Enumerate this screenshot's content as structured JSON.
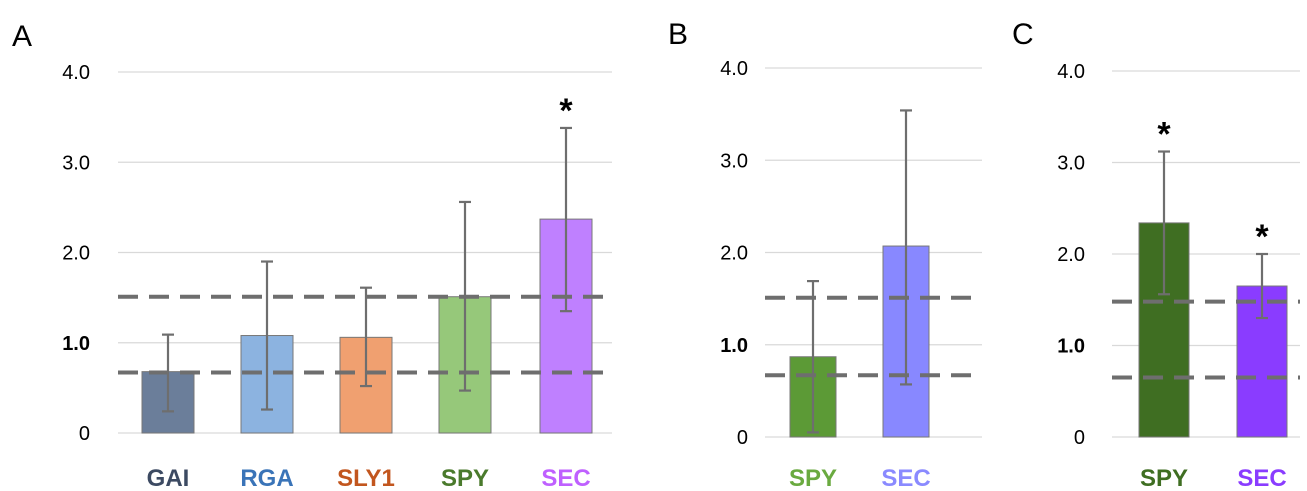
{
  "chart_data": [
    {
      "type": "bar",
      "panel": "A",
      "categories": [
        "GAI",
        "RGA",
        "SLY1",
        "SPY",
        "SEC"
      ],
      "values": [
        0.68,
        1.08,
        1.06,
        1.51,
        2.37
      ],
      "error_upper": [
        1.09,
        1.9,
        1.61,
        2.56,
        3.38
      ],
      "error_lower": [
        0.24,
        0.26,
        0.52,
        0.47,
        1.35
      ],
      "colors": [
        "#6b7e9a",
        "#8cb3e0",
        "#f0a070",
        "#96c87a",
        "#bf80ff"
      ],
      "label_colors": [
        "#3c4a62",
        "#3a74b8",
        "#c2561e",
        "#4a7a2c",
        "#bf60ff"
      ],
      "significance": [
        "",
        "",
        "",
        "",
        "*"
      ],
      "yticks": [
        "0",
        "1.0",
        "2.0",
        "3.0",
        "4.0"
      ],
      "ylim": [
        0,
        4
      ],
      "reference_lines": [
        0.67,
        1.51
      ],
      "grid": true
    },
    {
      "type": "bar",
      "panel": "B",
      "categories": [
        "SPY",
        "SEC"
      ],
      "values": [
        0.87,
        2.07
      ],
      "error_upper": [
        1.69,
        3.54
      ],
      "error_lower": [
        0.05,
        0.57
      ],
      "colors": [
        "#5c9a36",
        "#8888ff"
      ],
      "label_colors": [
        "#6aaa40",
        "#8a8aff"
      ],
      "significance": [
        "",
        ""
      ],
      "yticks": [
        "0",
        "1.0",
        "2.0",
        "3.0",
        "4.0"
      ],
      "ylim": [
        0,
        4
      ],
      "reference_lines": [
        0.67,
        1.51
      ],
      "grid": true
    },
    {
      "type": "bar",
      "panel": "C",
      "categories": [
        "SPY",
        "SEC"
      ],
      "values": [
        2.34,
        1.65
      ],
      "error_upper": [
        3.12,
        2.0
      ],
      "error_lower": [
        1.56,
        1.3
      ],
      "colors": [
        "#3f6e22",
        "#8a3cff"
      ],
      "label_colors": [
        "#3f6e22",
        "#8a3cff"
      ],
      "significance": [
        "*",
        "*"
      ],
      "yticks": [
        "0",
        "1.0",
        "2.0",
        "3.0",
        "4.0"
      ],
      "ylim": [
        0,
        4
      ],
      "reference_lines": [
        0.65,
        1.48
      ],
      "grid": true
    }
  ]
}
